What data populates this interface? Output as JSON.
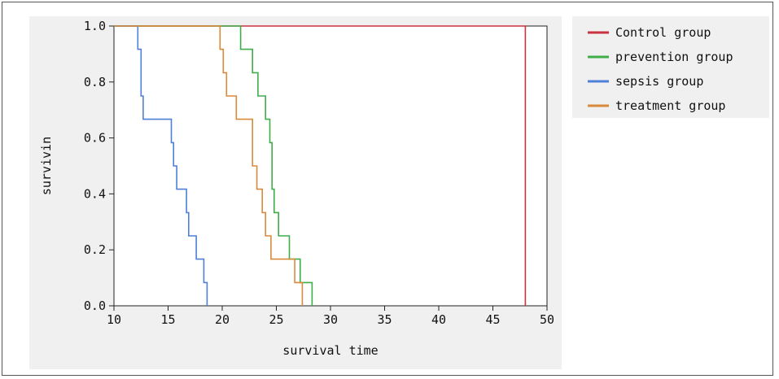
{
  "chart_data": {
    "type": "line",
    "xlabel": "survival time",
    "ylabel": "survivin",
    "xlim": [
      10,
      50
    ],
    "ylim": [
      0,
      1
    ],
    "xticks": [
      10,
      15,
      20,
      25,
      30,
      35,
      40,
      45,
      50
    ],
    "yticks": [
      "0.0",
      "0.2",
      "0.4",
      "0.6",
      "0.8",
      "1.0"
    ],
    "legend_position": "right",
    "grid": false,
    "series": [
      {
        "name": "Control group",
        "color": "#c8333f",
        "x": [
          10,
          48.0,
          48.0
        ],
        "y": [
          1.0,
          1.0,
          0.0
        ]
      },
      {
        "name": "prevention group",
        "color": "#3fae4a",
        "x": [
          10,
          21.7,
          21.7,
          22.8,
          22.8,
          23.3,
          23.3,
          24.0,
          24.0,
          24.4,
          24.4,
          24.6,
          24.6,
          24.8,
          24.8,
          25.2,
          25.2,
          26.2,
          26.2,
          27.2,
          27.2,
          28.3,
          28.3
        ],
        "y": [
          1.0,
          1.0,
          0.917,
          0.917,
          0.833,
          0.833,
          0.75,
          0.75,
          0.667,
          0.667,
          0.583,
          0.583,
          0.417,
          0.417,
          0.333,
          0.333,
          0.25,
          0.25,
          0.167,
          0.167,
          0.083,
          0.083,
          0.0
        ]
      },
      {
        "name": "sepsis group",
        "color": "#4f7fd8",
        "x": [
          10,
          12.2,
          12.2,
          12.5,
          12.5,
          12.7,
          12.7,
          15.3,
          15.3,
          15.5,
          15.5,
          15.8,
          15.8,
          16.7,
          16.7,
          16.9,
          16.9,
          17.6,
          17.6,
          18.3,
          18.3,
          18.6,
          18.6
        ],
        "y": [
          1.0,
          1.0,
          0.917,
          0.917,
          0.75,
          0.75,
          0.667,
          0.667,
          0.583,
          0.583,
          0.5,
          0.5,
          0.417,
          0.417,
          0.333,
          0.333,
          0.25,
          0.25,
          0.167,
          0.167,
          0.083,
          0.083,
          0.0
        ]
      },
      {
        "name": "treatment group",
        "color": "#d88a3a",
        "x": [
          10,
          19.8,
          19.8,
          20.1,
          20.1,
          20.4,
          20.4,
          21.3,
          21.3,
          22.8,
          22.8,
          23.2,
          23.2,
          23.7,
          23.7,
          24.0,
          24.0,
          24.5,
          24.5,
          26.7,
          26.7,
          27.4,
          27.4
        ],
        "y": [
          1.0,
          1.0,
          0.917,
          0.917,
          0.833,
          0.833,
          0.75,
          0.75,
          0.667,
          0.667,
          0.5,
          0.5,
          0.417,
          0.417,
          0.333,
          0.333,
          0.25,
          0.25,
          0.167,
          0.167,
          0.083,
          0.083,
          0.0
        ]
      }
    ]
  }
}
